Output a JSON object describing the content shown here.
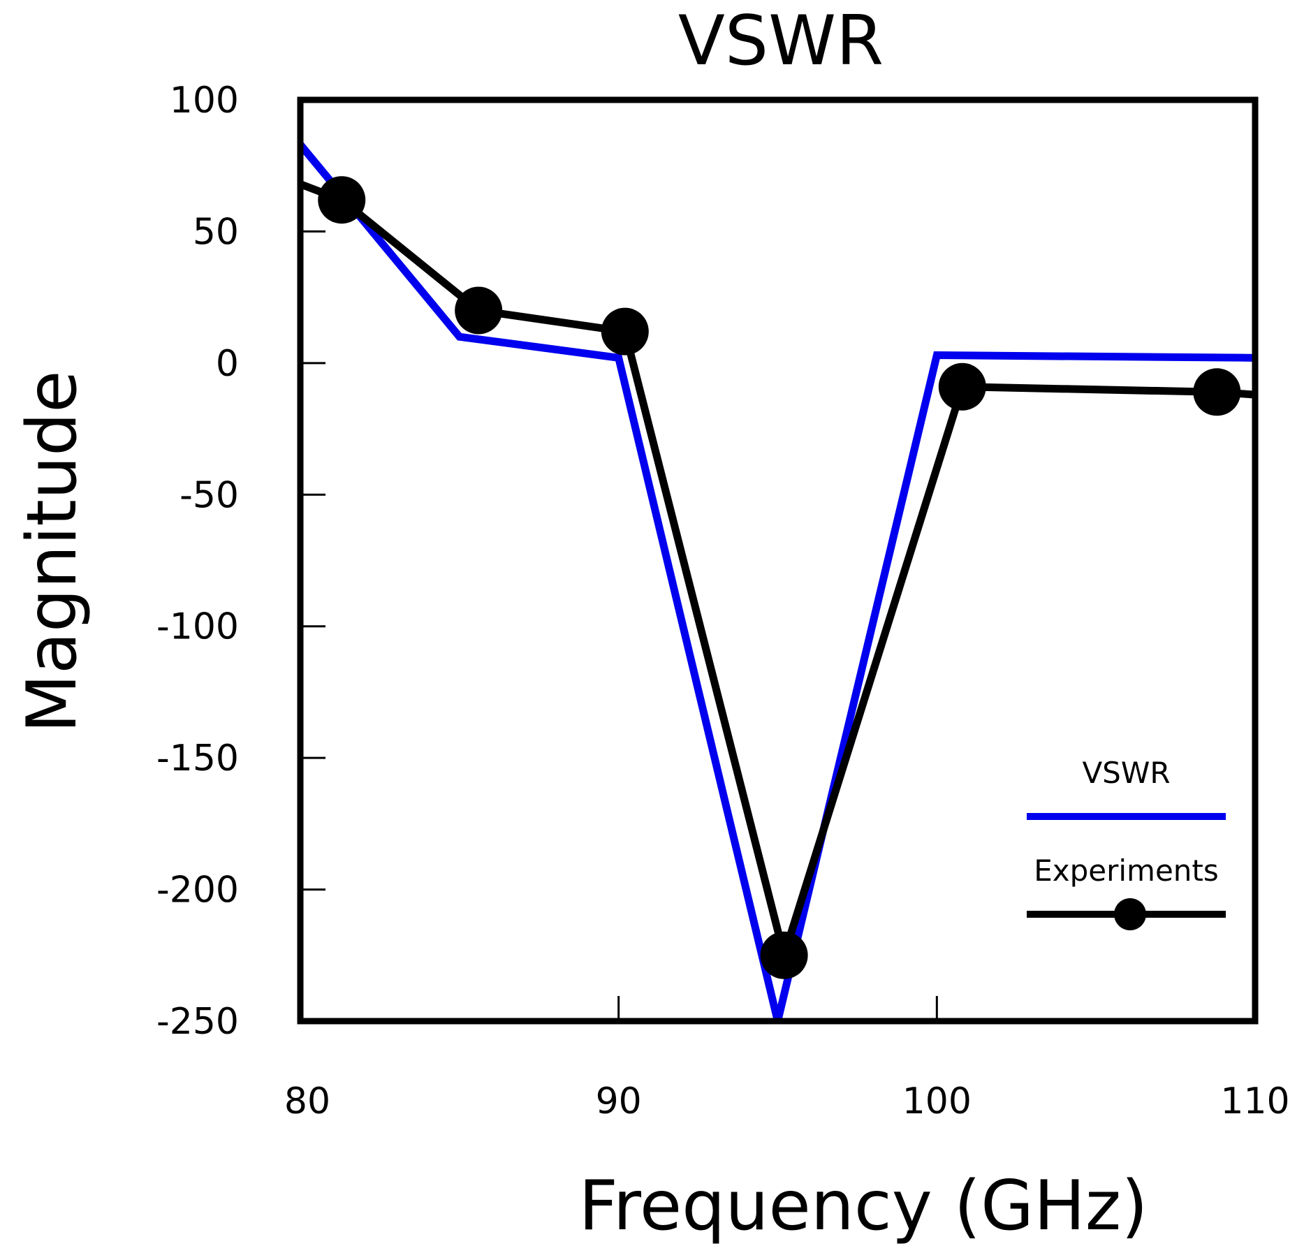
{
  "chart_data": {
    "type": "line",
    "title": "VSWR",
    "xlabel": "Frequency (GHz)",
    "ylabel": "Magnitude",
    "xlim": [
      80,
      110
    ],
    "ylim": [
      -250,
      100
    ],
    "xticks": [
      80,
      90,
      100,
      110
    ],
    "yticks": [
      100,
      50,
      0,
      -50,
      -100,
      -150,
      -200,
      -250
    ],
    "grid": false,
    "legend_position": "bottom-right",
    "series": [
      {
        "name": "VSWR",
        "color": "#0000ee",
        "marker": "none",
        "x": [
          80,
          85,
          90,
          95,
          100,
          110
        ],
        "y": [
          83,
          10,
          2,
          -250,
          3,
          2
        ]
      },
      {
        "name": "Experiments",
        "color": "#000000",
        "marker": "circle",
        "x": [
          80,
          81.3,
          85.6,
          90.2,
          95.2,
          100.8,
          108.8,
          110
        ],
        "y": [
          68,
          62,
          20,
          12,
          -225,
          -9,
          -11,
          -12
        ],
        "marker_indices": [
          1,
          2,
          3,
          4,
          5,
          6
        ]
      }
    ]
  }
}
